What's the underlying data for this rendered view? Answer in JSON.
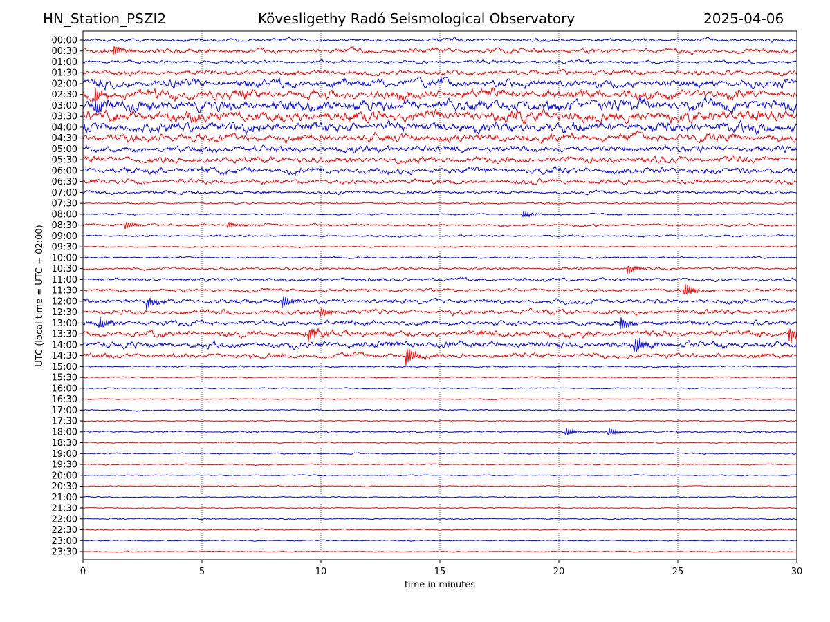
{
  "header": {
    "station": "HN_Station_PSZI2",
    "observatory": "Kövesligethy Radó Seismological Observatory",
    "date": "2025-04-06"
  },
  "chart_data": {
    "type": "line",
    "subtype": "helicorder",
    "xlabel": "time in minutes",
    "ylabel": "UTC (local time = UTC + 02:00)",
    "xlim": [
      0,
      30
    ],
    "xticks": [
      0,
      5,
      10,
      15,
      20,
      25,
      30
    ],
    "grid": "vertical dotted at x ticks",
    "colors": [
      "#0000ff",
      "#ff0000"
    ],
    "rows": [
      "00:00",
      "00:30",
      "01:00",
      "01:30",
      "02:00",
      "02:30",
      "03:00",
      "03:30",
      "04:00",
      "04:30",
      "05:00",
      "05:30",
      "06:00",
      "06:30",
      "07:00",
      "07:30",
      "08:00",
      "08:30",
      "09:00",
      "09:30",
      "10:00",
      "10:30",
      "11:00",
      "11:30",
      "12:00",
      "12:30",
      "13:00",
      "13:30",
      "14:00",
      "14:30",
      "15:00",
      "15:30",
      "16:00",
      "16:30",
      "17:00",
      "17:30",
      "18:00",
      "18:30",
      "19:00",
      "19:30",
      "20:00",
      "20:30",
      "21:00",
      "21:30",
      "22:00",
      "22:30",
      "23:00",
      "23:30"
    ],
    "relative_noise_amplitude": [
      2,
      3,
      2,
      3,
      5,
      6,
      7,
      7,
      6,
      5,
      4,
      4,
      4,
      3,
      2,
      1,
      1,
      1.5,
      1.2,
      0.8,
      1,
      1.5,
      2,
      2,
      3,
      3,
      3,
      4,
      4,
      3,
      1,
      0.7,
      0.7,
      0.7,
      0.8,
      0.7,
      1,
      0.8,
      0.8,
      0.7,
      0.6,
      0.6,
      0.6,
      0.6,
      0.7,
      0.7,
      0.6,
      0.6
    ],
    "events": [
      {
        "row": "00:30",
        "minute": 1.3,
        "amp": 8
      },
      {
        "row": "02:30",
        "minute": 0.5,
        "amp": 10
      },
      {
        "row": "03:00",
        "minute": 0.5,
        "amp": 10
      },
      {
        "row": "08:00",
        "minute": 18.5,
        "amp": 5
      },
      {
        "row": "08:30",
        "minute": 1.8,
        "amp": 6
      },
      {
        "row": "08:30",
        "minute": 6.1,
        "amp": 5
      },
      {
        "row": "10:30",
        "minute": 22.9,
        "amp": 7
      },
      {
        "row": "11:30",
        "minute": 25.3,
        "amp": 10
      },
      {
        "row": "12:00",
        "minute": 2.7,
        "amp": 8
      },
      {
        "row": "12:00",
        "minute": 8.4,
        "amp": 10
      },
      {
        "row": "12:30",
        "minute": 10.0,
        "amp": 8
      },
      {
        "row": "13:00",
        "minute": 0.7,
        "amp": 8
      },
      {
        "row": "13:00",
        "minute": 22.6,
        "amp": 9
      },
      {
        "row": "13:30",
        "minute": 9.5,
        "amp": 10
      },
      {
        "row": "13:30",
        "minute": 29.7,
        "amp": 12
      },
      {
        "row": "14:00",
        "minute": 23.2,
        "amp": 12
      },
      {
        "row": "14:30",
        "minute": 13.6,
        "amp": 14
      },
      {
        "row": "18:00",
        "minute": 20.3,
        "amp": 6
      },
      {
        "row": "18:00",
        "minute": 22.1,
        "amp": 6
      }
    ]
  }
}
